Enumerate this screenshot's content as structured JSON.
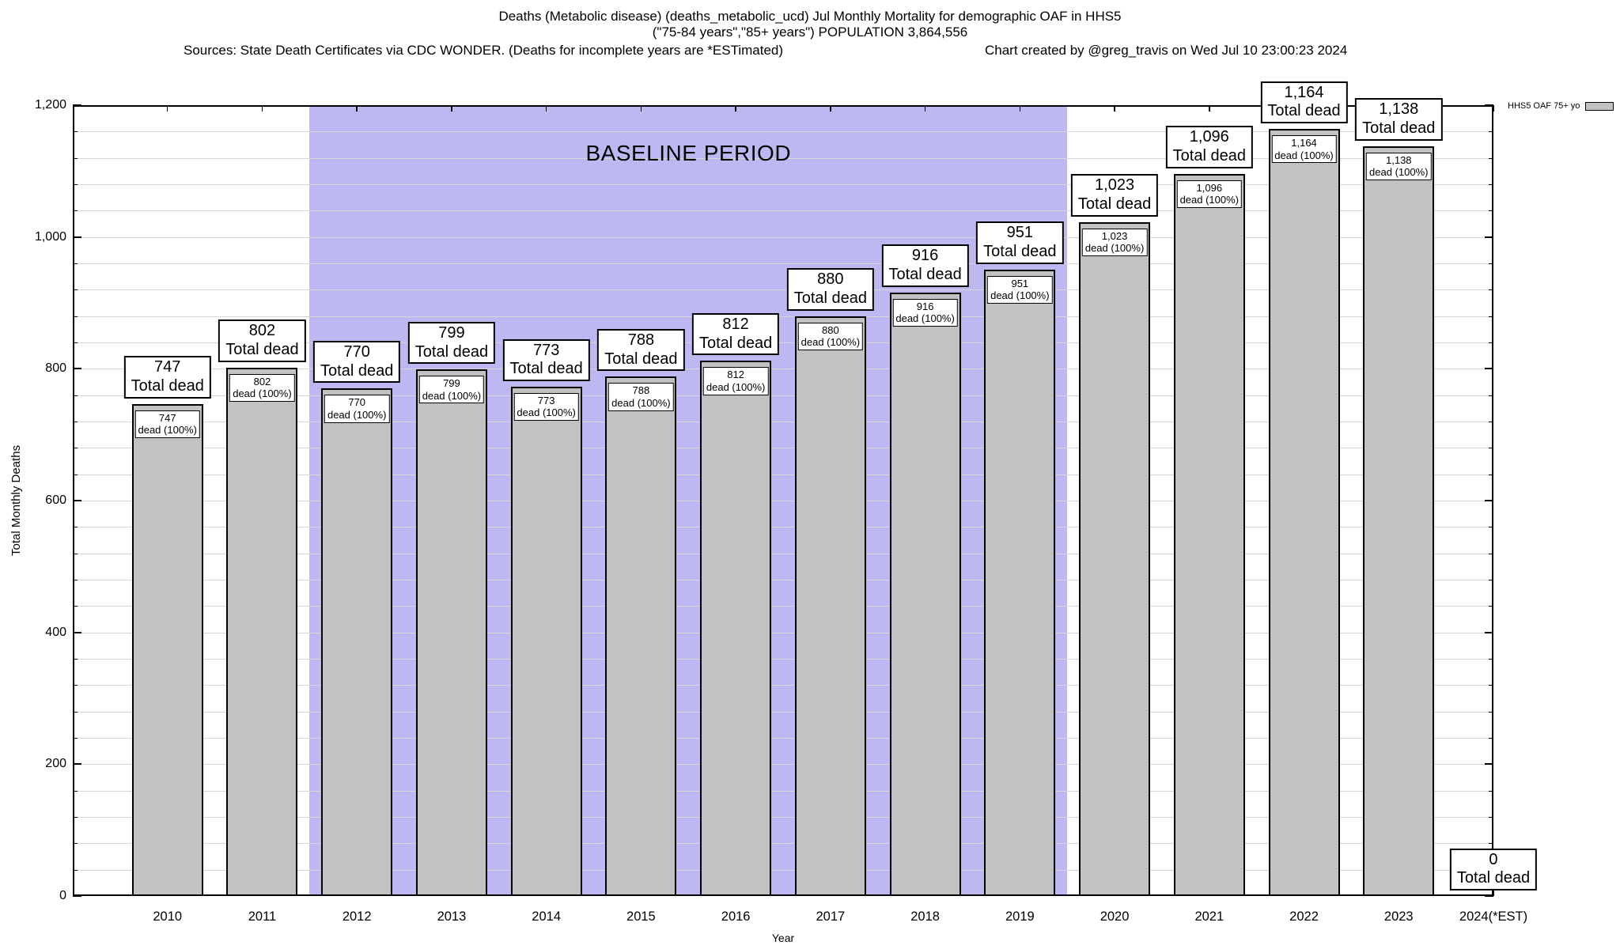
{
  "header": {
    "title_line1": "Deaths (Metabolic disease) (deaths_metabolic_ucd) Jul Monthly Mortality for demographic OAF in HHS5",
    "title_line2": "(\"75-84 years\",\"85+ years\") POPULATION 3,864,556",
    "sources": "Sources: State Death Certificates via CDC WONDER. (Deaths for incomplete years are *ESTimated)",
    "credit": "Chart created by @greg_travis on Wed Jul 10 23:00:23 2024"
  },
  "chart_data": {
    "type": "bar",
    "categories": [
      "2010",
      "2011",
      "2012",
      "2013",
      "2014",
      "2015",
      "2016",
      "2017",
      "2018",
      "2019",
      "2020",
      "2021",
      "2022",
      "2023",
      "2024(*EST)"
    ],
    "values": [
      747,
      802,
      770,
      799,
      773,
      788,
      812,
      880,
      916,
      951,
      1023,
      1096,
      1164,
      1138,
      0
    ],
    "outer_label_suffix": "Total dead",
    "inner_label_suffix": "dead (100%)",
    "xlabel": "Year",
    "ylabel": "Total Monthly Deaths",
    "ylim": [
      0,
      1200
    ],
    "ytick_step": 200,
    "minor_gridline_step": 40,
    "grid": true,
    "legend_label": "HHS5 OAF 75+ yo",
    "legend_position": "top-right",
    "annotation": {
      "label": "BASELINE PERIOD",
      "start_boundary_between": [
        "2011",
        "2012"
      ],
      "end_boundary_between": [
        "2019",
        "2020"
      ]
    },
    "colors": {
      "bar_fill": "#c2c2c2",
      "bar_border": "#000000",
      "baseline_region": "#bdb8f1",
      "gridline": "#d6d6d6",
      "legend_swatch": "#c2c2c2"
    }
  }
}
